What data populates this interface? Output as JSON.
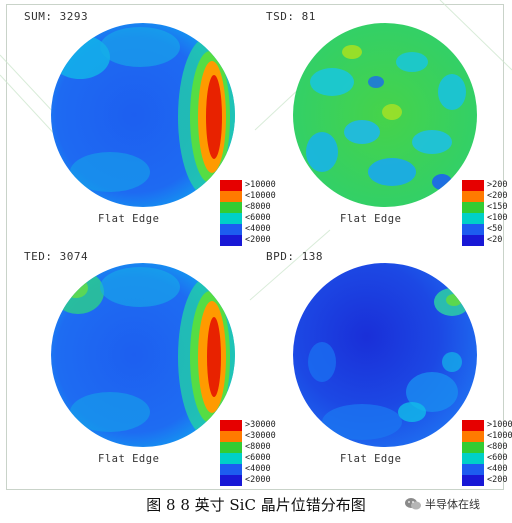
{
  "panels": [
    {
      "label": "SUM: 3293",
      "flat_edge": "Flat Edge",
      "legend": [
        {
          "text": ">10000",
          "color": "#e60000"
        },
        {
          "text": "<10000",
          "color": "#ff7a00"
        },
        {
          "text": "<8000",
          "color": "#33cc33"
        },
        {
          "text": "<6000",
          "color": "#00d0c8"
        },
        {
          "text": "<4000",
          "color": "#1d5cf0"
        },
        {
          "text": "<2000",
          "color": "#1818d6"
        }
      ]
    },
    {
      "label": "TSD: 81",
      "flat_edge": "Flat Edge",
      "legend": [
        {
          "text": ">200",
          "color": "#e60000"
        },
        {
          "text": "<200",
          "color": "#ff7a00"
        },
        {
          "text": "<150",
          "color": "#33cc33"
        },
        {
          "text": "<100",
          "color": "#00d0c8"
        },
        {
          "text": "<50",
          "color": "#1d5cf0"
        },
        {
          "text": "<20",
          "color": "#1818d6"
        }
      ]
    },
    {
      "label": "TED: 3074",
      "flat_edge": "Flat Edge",
      "legend": [
        {
          "text": ">30000",
          "color": "#e60000"
        },
        {
          "text": "<30000",
          "color": "#ff7a00"
        },
        {
          "text": "<8000",
          "color": "#33cc33"
        },
        {
          "text": "<6000",
          "color": "#00d0c8"
        },
        {
          "text": "<4000",
          "color": "#1d5cf0"
        },
        {
          "text": "<2000",
          "color": "#1818d6"
        }
      ]
    },
    {
      "label": "BPD: 138",
      "flat_edge": "Flat Edge",
      "legend": [
        {
          "text": ">1000",
          "color": "#e60000"
        },
        {
          "text": "<1000",
          "color": "#ff7a00"
        },
        {
          "text": "<800",
          "color": "#33cc33"
        },
        {
          "text": "<600",
          "color": "#00d0c8"
        },
        {
          "text": "<400",
          "color": "#1d5cf0"
        },
        {
          "text": "<200",
          "color": "#1818d6"
        }
      ]
    }
  ],
  "caption": "图 8   8 英寸 SiC 晶片位错分布图",
  "source": "半导体在线",
  "icons": {
    "source": "wechat-icon"
  }
}
